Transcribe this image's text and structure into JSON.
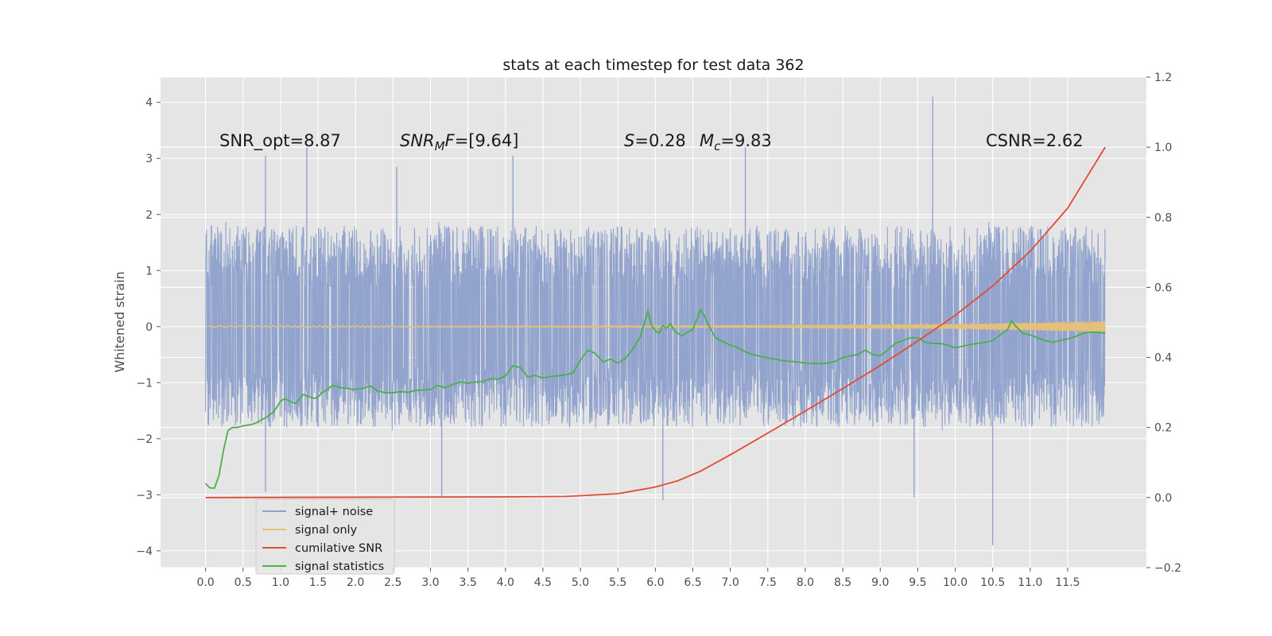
{
  "chart_data": {
    "type": "line",
    "title": "stats at each timestep for test data 362",
    "ylabel": "Whitened strain",
    "y2label": "",
    "xlabel": "",
    "xlim": [
      -0.6,
      12.55
    ],
    "ylim": [
      -4.3,
      4.45
    ],
    "y2lim": [
      -0.2,
      1.2
    ],
    "xticks": [
      "0.0",
      "0.5",
      "1.0",
      "1.5",
      "2.0",
      "2.5",
      "3.0",
      "3.5",
      "4.0",
      "4.5",
      "5.0",
      "5.5",
      "6.0",
      "6.5",
      "7.0",
      "7.5",
      "8.0",
      "8.5",
      "9.0",
      "9.5",
      "10.0",
      "10.5",
      "11.0",
      "11.5"
    ],
    "yticks": [
      "4",
      "3",
      "2",
      "1",
      "0",
      "−1",
      "−2",
      "−3",
      "−4"
    ],
    "y2ticks": [
      "1.2",
      "1.0",
      "0.8",
      "0.6",
      "0.4",
      "0.2",
      "0.0",
      "−0.2"
    ],
    "grid": true,
    "legend_position": "lower-left",
    "annotations": {
      "snr_opt": "SNR_opt=8.87",
      "snr_mf_main": "SNR",
      "snr_mf_sub": "M",
      "snr_mf_rest": "F=[9.64]",
      "s_label": "S",
      "s_value": "=0.28",
      "mc_label": "M",
      "mc_sub": "c",
      "mc_value": "=9.83",
      "csnr": "CSNR=2.62"
    },
    "series": [
      {
        "name": "signal+ noise",
        "color": "#8da0cb",
        "axis": "left",
        "x_range": [
          0.0,
          12.0
        ],
        "envelope_upper_typical": 2.0,
        "envelope_lower_typical": -2.0,
        "spikes": [
          [
            0.8,
            3.05
          ],
          [
            1.35,
            3.2
          ],
          [
            2.55,
            2.85
          ],
          [
            4.1,
            3.05
          ],
          [
            7.2,
            3.2
          ],
          [
            9.7,
            4.1
          ],
          [
            10.5,
            -3.9
          ],
          [
            6.1,
            -3.1
          ],
          [
            3.15,
            -3.05
          ],
          [
            0.8,
            -2.95
          ],
          [
            9.45,
            -3.05
          ]
        ]
      },
      {
        "name": "signal only",
        "color": "#e5c07b",
        "axis": "left",
        "x": [
          0.0,
          4.0,
          7.0,
          9.0,
          10.0,
          11.0,
          12.0
        ],
        "amplitude": [
          0.01,
          0.01,
          0.015,
          0.025,
          0.04,
          0.07,
          0.1
        ]
      },
      {
        "name": "cumilative SNR",
        "color": "#e24a33",
        "axis": "right",
        "x": [
          0.0,
          2.0,
          4.0,
          4.8,
          5.5,
          6.0,
          6.3,
          6.6,
          7.0,
          7.5,
          8.0,
          8.5,
          9.0,
          9.5,
          10.0,
          10.5,
          11.0,
          11.5,
          12.0
        ],
        "y": [
          0.0,
          0.001,
          0.002,
          0.003,
          0.011,
          0.03,
          0.048,
          0.075,
          0.122,
          0.184,
          0.247,
          0.311,
          0.377,
          0.447,
          0.52,
          0.604,
          0.703,
          0.826,
          1.0
        ]
      },
      {
        "name": "signal statistics",
        "color": "#4daf4a",
        "axis": "left",
        "x": [
          0.0,
          0.06,
          0.12,
          0.18,
          0.24,
          0.3,
          0.36,
          0.42,
          0.5,
          0.55,
          0.6,
          0.65,
          0.7,
          0.75,
          0.8,
          0.85,
          0.9,
          0.95,
          1.0,
          1.05,
          1.1,
          1.15,
          1.2,
          1.25,
          1.3,
          1.35,
          1.4,
          1.45,
          1.5,
          1.55,
          1.6,
          1.65,
          1.7,
          1.75,
          1.8,
          1.85,
          1.9,
          1.95,
          2.0,
          2.1,
          2.2,
          2.3,
          2.4,
          2.5,
          2.6,
          2.7,
          2.8,
          2.9,
          3.0,
          3.1,
          3.2,
          3.3,
          3.4,
          3.5,
          3.6,
          3.7,
          3.8,
          3.9,
          4.0,
          4.1,
          4.2,
          4.3,
          4.4,
          4.5,
          4.6,
          4.7,
          4.8,
          4.9,
          5.0,
          5.1,
          5.2,
          5.3,
          5.4,
          5.5,
          5.6,
          5.7,
          5.8,
          5.9,
          5.95,
          6.0,
          6.05,
          6.1,
          6.15,
          6.2,
          6.25,
          6.3,
          6.35,
          6.4,
          6.5,
          6.6,
          6.65,
          6.7,
          6.8,
          6.9,
          7.0,
          7.1,
          7.2,
          7.3,
          7.4,
          7.5,
          7.6,
          7.7,
          7.8,
          7.9,
          8.0,
          8.1,
          8.2,
          8.3,
          8.4,
          8.5,
          8.6,
          8.7,
          8.8,
          8.9,
          9.0,
          9.1,
          9.2,
          9.3,
          9.4,
          9.5,
          9.6,
          9.7,
          9.8,
          9.9,
          10.0,
          10.1,
          10.2,
          10.3,
          10.4,
          10.5,
          10.6,
          10.7,
          10.75,
          10.8,
          10.9,
          11.0,
          11.1,
          11.2,
          11.3,
          11.4,
          11.5,
          11.6,
          11.7,
          11.8,
          11.9,
          12.0
        ],
        "y": [
          -2.8,
          -2.88,
          -2.88,
          -2.65,
          -2.2,
          -1.85,
          -1.8,
          -1.8,
          -1.77,
          -1.76,
          -1.75,
          -1.73,
          -1.7,
          -1.66,
          -1.63,
          -1.58,
          -1.53,
          -1.44,
          -1.33,
          -1.29,
          -1.31,
          -1.35,
          -1.37,
          -1.3,
          -1.21,
          -1.24,
          -1.26,
          -1.28,
          -1.26,
          -1.18,
          -1.15,
          -1.09,
          -1.05,
          -1.07,
          -1.09,
          -1.1,
          -1.1,
          -1.12,
          -1.12,
          -1.1,
          -1.06,
          -1.15,
          -1.18,
          -1.18,
          -1.16,
          -1.17,
          -1.14,
          -1.13,
          -1.12,
          -1.05,
          -1.09,
          -1.03,
          -0.99,
          -1.01,
          -0.99,
          -0.98,
          -0.93,
          -0.94,
          -0.88,
          -0.7,
          -0.73,
          -0.9,
          -0.87,
          -0.92,
          -0.89,
          -0.88,
          -0.86,
          -0.83,
          -0.6,
          -0.42,
          -0.48,
          -0.63,
          -0.58,
          -0.65,
          -0.57,
          -0.4,
          -0.18,
          0.28,
          0.02,
          -0.08,
          -0.12,
          0.02,
          -0.03,
          0.05,
          -0.07,
          -0.12,
          -0.17,
          -0.12,
          -0.05,
          0.3,
          0.2,
          0.05,
          -0.2,
          -0.27,
          -0.33,
          -0.38,
          -0.45,
          -0.5,
          -0.53,
          -0.56,
          -0.58,
          -0.61,
          -0.62,
          -0.63,
          -0.65,
          -0.66,
          -0.66,
          -0.65,
          -0.62,
          -0.55,
          -0.52,
          -0.5,
          -0.42,
          -0.5,
          -0.52,
          -0.42,
          -0.3,
          -0.25,
          -0.2,
          -0.2,
          -0.28,
          -0.3,
          -0.3,
          -0.33,
          -0.38,
          -0.35,
          -0.32,
          -0.3,
          -0.28,
          -0.25,
          -0.15,
          -0.05,
          0.1,
          0.02,
          -0.12,
          -0.15,
          -0.2,
          -0.25,
          -0.28,
          -0.25,
          -0.22,
          -0.18,
          -0.12,
          -0.1,
          -0.1,
          -0.12
        ]
      }
    ]
  }
}
